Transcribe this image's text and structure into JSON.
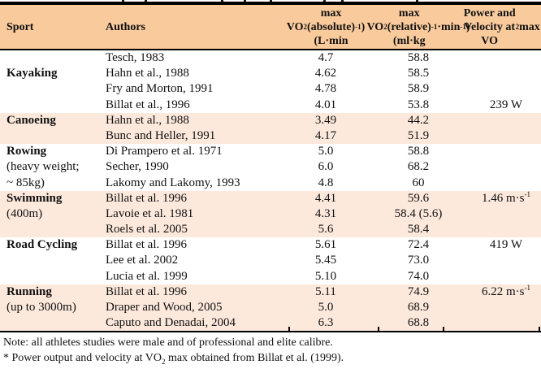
{
  "table": {
    "header": {
      "sport": "Sport",
      "authors": "Authors",
      "vo2_absolute": "VO_2_ max\n(absolute)\n(L·min^-1^)",
      "vo2_relative": "VO_2_max\n(relative)\n(ml·kg^-1^·min^-1^)",
      "power_velocity": "Power and\nVelocity at\nVO_2_max *"
    },
    "groups": [
      {
        "sport_lines": [
          {
            "text": "Kayaking",
            "bold": true
          }
        ],
        "label_offset_rows": 1,
        "shaded": false,
        "rows": [
          [
            "Tesch, 1983",
            "4.7",
            "58.8",
            ""
          ],
          [
            "Hahn et al., 1988",
            "4.62",
            "58.5",
            ""
          ],
          [
            "Fry and Morton, 1991",
            "4.78",
            "58.9",
            ""
          ],
          [
            "Billat et al., 1996",
            "4.01",
            "53.8",
            "239 W"
          ]
        ]
      },
      {
        "sport_lines": [
          {
            "text": "Canoeing",
            "bold": true
          }
        ],
        "label_offset_rows": 0,
        "shaded": true,
        "rows": [
          [
            "Hahn et al., 1988",
            "3.49",
            "44.2",
            ""
          ],
          [
            "Bunc and Heller, 1991",
            "4.17",
            "51.9",
            ""
          ]
        ]
      },
      {
        "sport_lines": [
          {
            "text": "Rowing",
            "bold": true
          },
          {
            "text": "(heavy weight;",
            "bold": false
          },
          {
            "text": "~ 85kg)",
            "bold": false
          }
        ],
        "label_offset_rows": 0,
        "shaded": false,
        "rows": [
          [
            "Di Prampero et al. 1971",
            "5.0",
            "58.8",
            ""
          ],
          [
            "Secher, 1990",
            "6.0",
            "68.2",
            ""
          ],
          [
            "Lakomy and Lakomy, 1993",
            "4.8",
            "60",
            ""
          ]
        ]
      },
      {
        "sport_lines": [
          {
            "text": "Swimming",
            "bold": true
          },
          {
            "text": "(400m)",
            "bold": false
          }
        ],
        "label_offset_rows": 0,
        "shaded": true,
        "rows": [
          [
            "Billat et al. 1996",
            "4.41",
            "59.6",
            "1.46 m·s^-1^"
          ],
          [
            "Lavoie et al. 1981",
            "4.31",
            "58.4 (5.6)",
            ""
          ],
          [
            "Roels et al. 2005",
            "5.6",
            "58.4",
            ""
          ]
        ]
      },
      {
        "sport_lines": [
          {
            "text": "Road Cycling",
            "bold": true
          }
        ],
        "label_offset_rows": 0,
        "shaded": false,
        "rows": [
          [
            "Billat et al. 1996",
            "5.61",
            "72.4",
            "419 W"
          ],
          [
            "Lee et al. 2002",
            "5.45",
            "73.0",
            ""
          ],
          [
            "Lucia et al. 1999",
            "5.10",
            "74.0",
            ""
          ]
        ]
      },
      {
        "sport_lines": [
          {
            "text": "Running",
            "bold": true
          },
          {
            "text": "(up to 3000m)",
            "bold": false
          }
        ],
        "label_offset_rows": 0,
        "shaded": true,
        "rows": [
          [
            "Billat et al. 1996",
            "5.11",
            "74.9",
            "6.22 m·s^-1^"
          ],
          [
            "Draper and Wood, 2005",
            "5.0",
            "68.9",
            ""
          ],
          [
            "Caputo and Denadai, 2004",
            "6.3",
            "68.8",
            ""
          ]
        ]
      }
    ]
  },
  "notes": {
    "note": "Note: all athletes studies were male and of professional and elite calibre.",
    "footnote": "* Power output and velocity at VO_2_ max obtained from Billat et al. (1999)."
  },
  "colors": {
    "header_bg": "#F9CA9C",
    "band_bg": "#FCE9DC",
    "border": "#000000"
  }
}
